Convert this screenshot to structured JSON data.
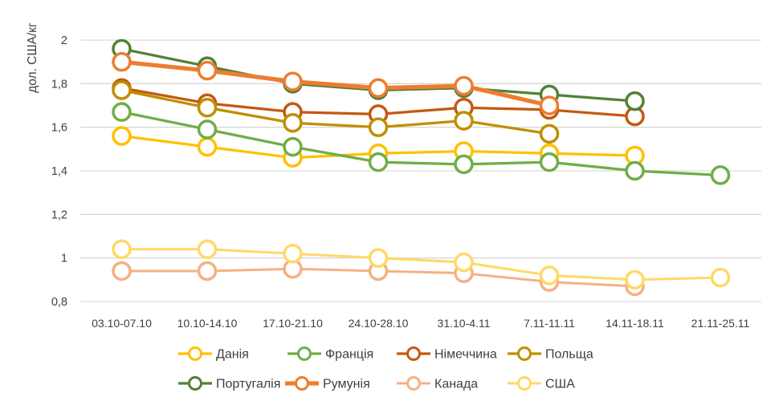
{
  "chart_data": {
    "type": "line",
    "title": "",
    "ylabel": "дол. США/кг",
    "xlabel": "",
    "ylim": [
      0.8,
      2.0
    ],
    "grid": true,
    "gridline_color": "#D9D9D9",
    "axis_text_color": "#404040",
    "marker_style": "open-circle",
    "legend_position": "bottom",
    "legend_rows": 2,
    "yticks": [
      {
        "value": 2.0,
        "label": "2"
      },
      {
        "value": 1.8,
        "label": "1,8"
      },
      {
        "value": 1.6,
        "label": "1,6"
      },
      {
        "value": 1.4,
        "label": "1,4"
      },
      {
        "value": 1.2,
        "label": "1,2"
      },
      {
        "value": 1.0,
        "label": "1"
      },
      {
        "value": 0.8,
        "label": "0,8"
      }
    ],
    "categories": [
      "03.10-07.10",
      "10.10-14.10",
      "17.10-21.10",
      "24.10-28.10",
      "31.10-4.11",
      "7.11-11.11",
      "14.11-18.11",
      "21.11-25.11"
    ],
    "series": [
      {
        "name": "Данія",
        "color": "#FFC000",
        "line_width": 3.25,
        "values": [
          1.56,
          1.51,
          1.46,
          1.48,
          1.49,
          1.48,
          1.47,
          null
        ]
      },
      {
        "name": "Франція",
        "color": "#70AD47",
        "line_width": 3.25,
        "values": [
          1.67,
          1.59,
          1.51,
          1.44,
          1.43,
          1.44,
          1.4,
          1.38
        ]
      },
      {
        "name": "Німеччина",
        "color": "#C45911",
        "line_width": 3.25,
        "values": [
          1.78,
          1.71,
          1.67,
          1.66,
          1.69,
          1.68,
          1.65,
          null
        ]
      },
      {
        "name": "Польща",
        "color": "#BF8F00",
        "line_width": 3.25,
        "values": [
          1.77,
          1.69,
          1.62,
          1.6,
          1.63,
          1.57,
          null,
          null
        ]
      },
      {
        "name": "Португалія",
        "color": "#538135",
        "line_width": 3.25,
        "values": [
          1.96,
          1.88,
          1.8,
          1.77,
          1.78,
          1.75,
          1.72,
          null
        ]
      },
      {
        "name": "Румунія",
        "color": "#ED7D31",
        "line_width": 5.25,
        "values": [
          1.9,
          1.86,
          1.81,
          1.78,
          1.79,
          1.7,
          null,
          null
        ]
      },
      {
        "name": "Канада",
        "color": "#F4B183",
        "line_width": 3.0,
        "values": [
          0.94,
          0.94,
          0.95,
          0.94,
          0.93,
          0.89,
          0.87,
          null
        ]
      },
      {
        "name": "США",
        "color": "#FFD966",
        "line_width": 3.0,
        "values": [
          1.04,
          1.04,
          1.02,
          1.0,
          0.98,
          0.92,
          0.9,
          0.91
        ]
      }
    ]
  }
}
